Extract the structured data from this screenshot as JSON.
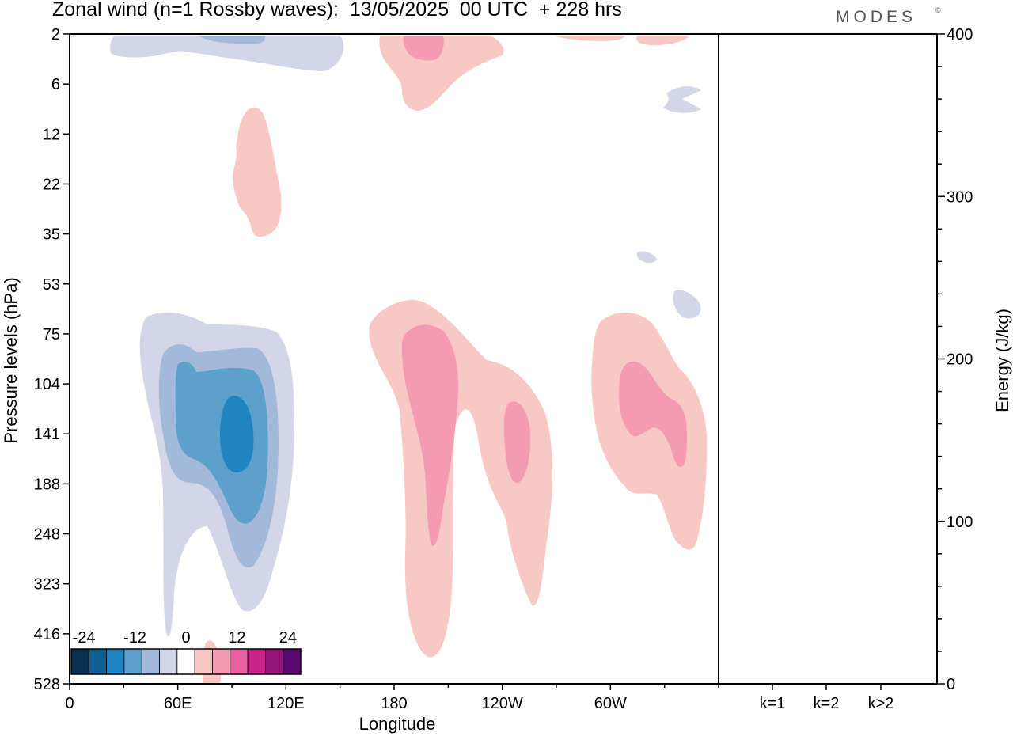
{
  "title": "Zonal wind (n=1 Rossby waves):  13/05/2025  00 UTC  + 228 hrs",
  "logo": "MODES",
  "logo_mark": "©",
  "chart_data": [
    {
      "type": "heatmap",
      "title": "Zonal wind (n=1 Rossby waves):  13/05/2025  00 UTC  + 228 hrs",
      "xlabel": "Longitude",
      "ylabel": "Pressure levels (hPa)",
      "xlim": [
        0,
        360
      ],
      "x_ticks": [
        "0",
        "60E",
        "120E",
        "180",
        "120W",
        "60W"
      ],
      "x_tick_values": [
        0,
        60,
        120,
        180,
        240,
        300
      ],
      "y_ticks": [
        "2",
        "6",
        "12",
        "22",
        "35",
        "53",
        "75",
        "104",
        "141",
        "188",
        "248",
        "323",
        "416",
        "528"
      ],
      "y_scale": "pressure levels (categorical, top to bottom)",
      "colorbar": {
        "labels": [
          "-24",
          "-12",
          "0",
          "12",
          "24"
        ],
        "label_values": [
          -24,
          -12,
          0,
          12,
          24
        ],
        "bins": [
          -27,
          -21,
          -18,
          -15,
          -12,
          -9,
          -6,
          -3,
          3,
          6,
          9,
          12,
          15,
          18
        ],
        "colors": [
          "#08304f",
          "#0f5f92",
          "#1f84bf",
          "#5ea0cc",
          "#a2b9da",
          "#d3d5e8",
          "#ffffff",
          "#f8c8c5",
          "#f59ab3",
          "#e8609f",
          "#c92588",
          "#941679",
          "#5a0a6e"
        ]
      },
      "features": [
        {
          "name": "negative anomaly, lower troposphere",
          "lon_range": [
            35,
            125
          ],
          "levels_hPa": [
            75,
            416
          ],
          "min_value": -12
        },
        {
          "name": "negative anomaly, stratosphere",
          "lon_range": [
            20,
            150
          ],
          "levels_hPa": [
            2,
            4
          ],
          "min_value": -6
        },
        {
          "name": "positive anomaly, lower troposphere",
          "lon_range": [
            170,
            260
          ],
          "levels_hPa": [
            60,
            416
          ],
          "max_value": 6
        },
        {
          "name": "positive anomaly",
          "lon_range": [
            290,
            350
          ],
          "levels_hPa": [
            75,
            248
          ],
          "max_value": 6
        },
        {
          "name": "positive anomaly, stratosphere",
          "lon_range": [
            80,
            120
          ],
          "levels_hPa": [
            8,
            35
          ],
          "max_value": 3
        },
        {
          "name": "positive anomaly, upper stratosphere",
          "lon_range": [
            180,
            240
          ],
          "levels_hPa": [
            2,
            8
          ],
          "max_value": 6
        }
      ]
    },
    {
      "type": "bar",
      "ylabel": "Energy (J/kg)",
      "ylim": [
        0,
        400
      ],
      "y_ticks": [
        "0",
        "100",
        "200",
        "300",
        "400"
      ],
      "categories": [
        "k=1",
        "k=2",
        "k>2"
      ],
      "values": [
        0.5,
        0.1,
        0.3
      ]
    }
  ]
}
